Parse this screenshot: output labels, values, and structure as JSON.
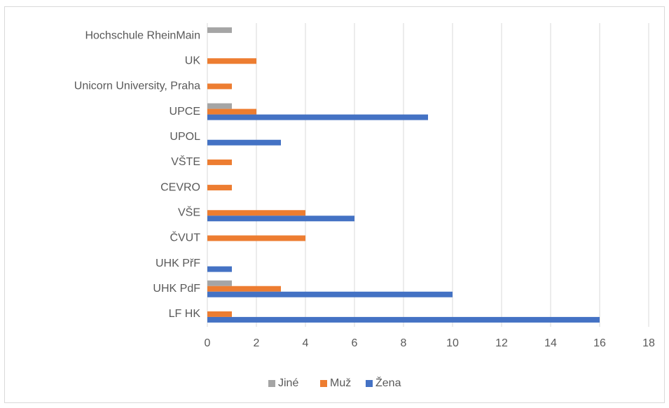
{
  "chart_data": {
    "type": "hbar",
    "categories": [
      "LF HK",
      "UHK PdF",
      "UHK PřF",
      "ČVUT",
      "VŠE",
      "CEVRO",
      "VŠTE",
      "UPOL",
      "UPCE",
      "Unicorn University, Praha",
      "UK",
      "Hochschule RheinMain"
    ],
    "series": [
      {
        "name": "Jiné",
        "color": "#a5a5a5",
        "values": [
          null,
          1,
          null,
          null,
          null,
          null,
          null,
          null,
          1,
          null,
          null,
          1
        ]
      },
      {
        "name": "Muž",
        "color": "#ed7d31",
        "values": [
          1,
          3,
          null,
          4,
          4,
          1,
          1,
          null,
          2,
          1,
          2,
          null
        ]
      },
      {
        "name": "Žena",
        "color": "#4472c4",
        "values": [
          16,
          10,
          1,
          null,
          6,
          null,
          null,
          3,
          9,
          null,
          null,
          null
        ]
      }
    ],
    "xlim": [
      0,
      18
    ],
    "xticks": [
      0,
      2,
      4,
      6,
      8,
      10,
      12,
      14,
      16,
      18
    ],
    "grid": true,
    "legend": "bottom"
  }
}
